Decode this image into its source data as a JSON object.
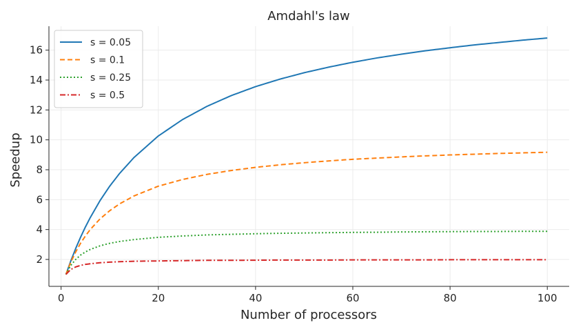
{
  "chart_data": {
    "type": "line",
    "title": "Amdahl's law",
    "xlabel": "Number of processors",
    "ylabel": "Speedup",
    "xlim": [
      -2.5,
      104.5
    ],
    "ylim": [
      0.2,
      17.6
    ],
    "xticks": [
      0,
      20,
      40,
      60,
      80,
      100
    ],
    "yticks": [
      2,
      4,
      6,
      8,
      10,
      12,
      14,
      16
    ],
    "grid": true,
    "legend_position": "upper-left",
    "x": [
      1,
      2,
      3,
      4,
      5,
      6,
      8,
      10,
      12,
      15,
      20,
      25,
      30,
      35,
      40,
      45,
      50,
      55,
      60,
      65,
      70,
      75,
      80,
      85,
      90,
      95,
      100
    ],
    "series": [
      {
        "name": "s = 0.05",
        "color": "#1f77b4",
        "dash": "solid",
        "values": [
          1.0,
          1.9,
          2.73,
          3.48,
          4.17,
          4.8,
          5.93,
          6.9,
          7.74,
          8.82,
          10.26,
          11.36,
          12.24,
          12.96,
          13.56,
          14.06,
          14.49,
          14.86,
          15.19,
          15.48,
          15.73,
          15.96,
          16.16,
          16.35,
          16.51,
          16.67,
          16.81
        ]
      },
      {
        "name": "s = 0.1",
        "color": "#ff7f0e",
        "dash": "dashed",
        "values": [
          1.0,
          1.82,
          2.5,
          3.08,
          3.57,
          4.0,
          4.71,
          5.26,
          5.71,
          6.25,
          6.9,
          7.35,
          7.69,
          7.95,
          8.16,
          8.33,
          8.47,
          8.59,
          8.7,
          8.78,
          8.86,
          8.93,
          8.99,
          9.04,
          9.09,
          9.13,
          9.17
        ]
      },
      {
        "name": "s = 0.25",
        "color": "#2ca02c",
        "dash": "dotted",
        "values": [
          1.0,
          1.6,
          2.0,
          2.29,
          2.5,
          2.67,
          2.91,
          3.08,
          3.2,
          3.33,
          3.48,
          3.57,
          3.64,
          3.68,
          3.72,
          3.75,
          3.77,
          3.79,
          3.81,
          3.82,
          3.84,
          3.85,
          3.86,
          3.87,
          3.87,
          3.88,
          3.88
        ]
      },
      {
        "name": "s = 0.5",
        "color": "#d62728",
        "dash": "dashdot",
        "values": [
          1.0,
          1.33,
          1.5,
          1.6,
          1.67,
          1.71,
          1.78,
          1.82,
          1.85,
          1.88,
          1.9,
          1.92,
          1.94,
          1.94,
          1.95,
          1.96,
          1.96,
          1.96,
          1.97,
          1.97,
          1.97,
          1.97,
          1.98,
          1.98,
          1.98,
          1.98,
          1.98
        ]
      }
    ]
  }
}
